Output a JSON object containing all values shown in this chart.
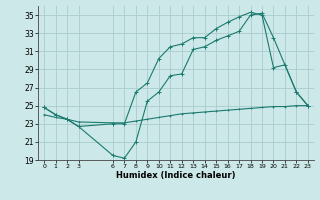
{
  "title": "",
  "xlabel": "Humidex (Indice chaleur)",
  "ylabel": "",
  "background_color": "#cce8e8",
  "grid_color": "#aacccc",
  "line_color": "#1a7a6e",
  "ylim": [
    19,
    36
  ],
  "xlim": [
    -0.5,
    23.5
  ],
  "yticks": [
    19,
    21,
    23,
    25,
    27,
    29,
    31,
    33,
    35
  ],
  "xticks": [
    0,
    1,
    2,
    3,
    6,
    7,
    8,
    9,
    10,
    11,
    12,
    13,
    14,
    15,
    16,
    17,
    18,
    19,
    20,
    21,
    22,
    23
  ],
  "line1_x": [
    0,
    1,
    2,
    3,
    6,
    7,
    8,
    9,
    10,
    11,
    12,
    13,
    14,
    15,
    16,
    17,
    18,
    19,
    20,
    21,
    22,
    23
  ],
  "line1_y": [
    24.0,
    23.7,
    23.5,
    23.2,
    23.1,
    23.1,
    23.3,
    23.5,
    23.7,
    23.9,
    24.1,
    24.2,
    24.3,
    24.4,
    24.5,
    24.6,
    24.7,
    24.8,
    24.9,
    24.9,
    25.0,
    25.0
  ],
  "line2_x": [
    0,
    1,
    2,
    3,
    6,
    7,
    8,
    9,
    10,
    11,
    12,
    13,
    14,
    15,
    16,
    17,
    18,
    19,
    20,
    22,
    23
  ],
  "line2_y": [
    24.8,
    24.0,
    23.5,
    22.7,
    19.5,
    19.2,
    21.0,
    25.5,
    26.5,
    28.3,
    28.5,
    31.2,
    31.5,
    32.2,
    32.7,
    33.2,
    35.0,
    35.2,
    32.5,
    26.5,
    25.0
  ],
  "line3_x": [
    0,
    1,
    2,
    3,
    6,
    7,
    8,
    9,
    10,
    11,
    12,
    13,
    14,
    15,
    16,
    17,
    18,
    19,
    20,
    21,
    22,
    23
  ],
  "line3_y": [
    24.8,
    24.0,
    23.5,
    22.7,
    23.0,
    23.0,
    26.5,
    27.5,
    30.2,
    31.5,
    31.8,
    32.5,
    32.5,
    33.5,
    34.2,
    34.8,
    35.3,
    35.0,
    29.2,
    29.5,
    26.5,
    25.0
  ]
}
